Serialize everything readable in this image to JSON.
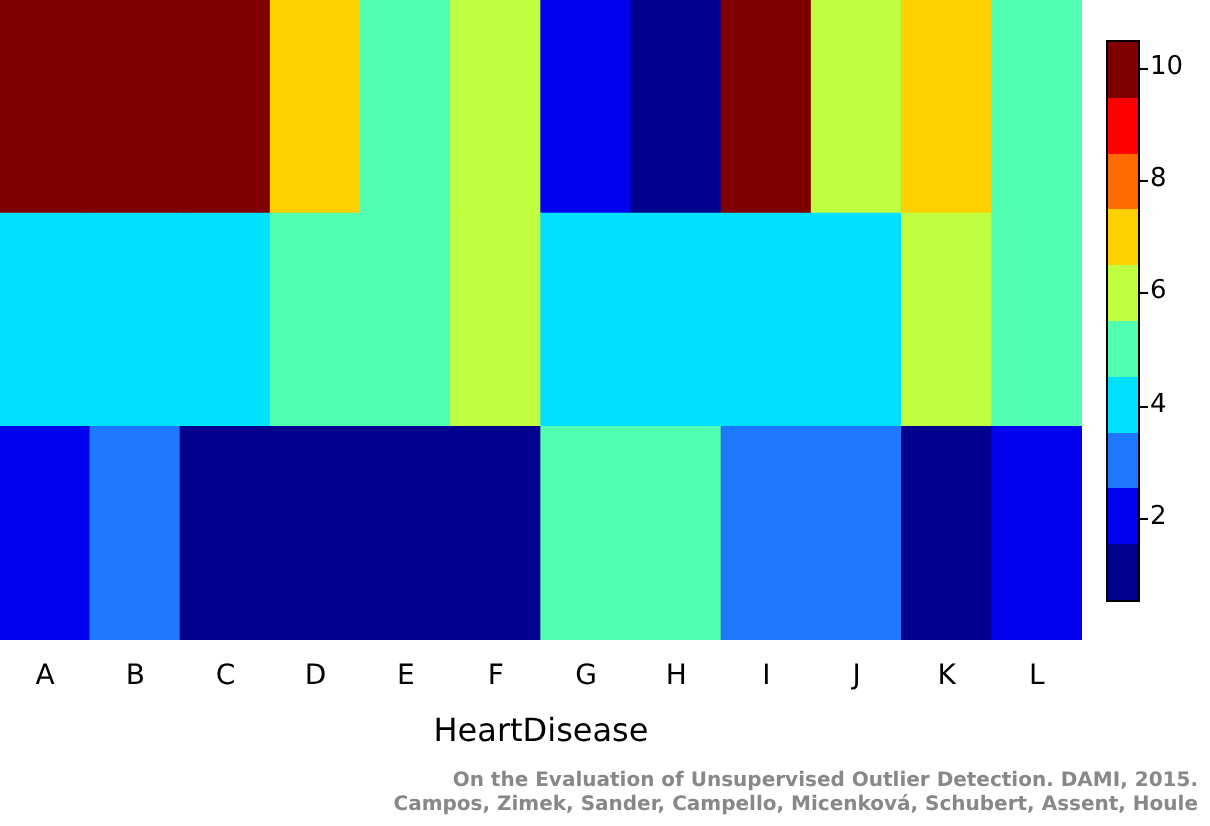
{
  "chart_data": {
    "type": "heatmap",
    "xlabel": "HeartDisease",
    "categories": [
      "A",
      "B",
      "C",
      "D",
      "E",
      "F",
      "G",
      "H",
      "I",
      "J",
      "K",
      "L"
    ],
    "y_categories": [
      null,
      null,
      null
    ],
    "cells": [
      [
        10,
        10,
        10,
        7,
        5,
        6,
        2,
        1,
        10,
        6,
        7,
        5
      ],
      [
        4,
        4,
        4,
        5,
        5,
        6,
        4,
        4,
        4,
        4,
        6,
        5
      ],
      [
        2,
        3,
        1,
        1,
        1,
        1,
        5,
        5,
        3,
        3,
        1,
        2
      ]
    ],
    "clim": [
      0.5,
      10.5
    ],
    "cticks": [
      2,
      4,
      6,
      8,
      10
    ],
    "annotations": [
      "On the Evaluation of Unsupervised Outlier Detection. DAMI, 2015.",
      "Campos, Zimek, Sander, Campello, Micenková, Schubert, Assent, Houle"
    ]
  }
}
